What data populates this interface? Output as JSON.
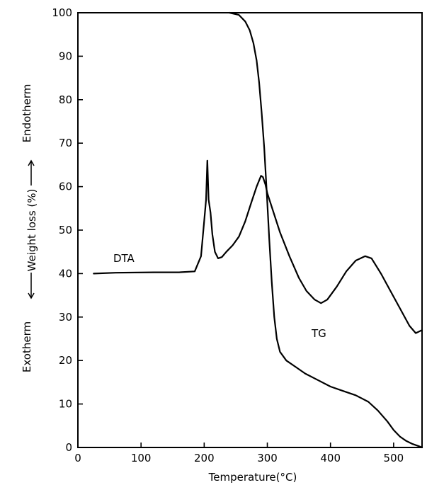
{
  "chart_data": {
    "type": "line",
    "xlabel": "Temperature(°C)",
    "ylabel_parts": {
      "exotherm": "Exotherm",
      "weight": "Weight loss (%)",
      "endotherm": "Endotherm"
    },
    "xlim": [
      0,
      545
    ],
    "ylim": [
      0,
      100
    ],
    "xticks": [
      0,
      100,
      200,
      300,
      400,
      500
    ],
    "yticks": [
      0,
      10,
      20,
      30,
      40,
      50,
      60,
      70,
      80,
      90,
      100
    ],
    "grid": false,
    "legend": "none",
    "series": [
      {
        "name": "DTA",
        "label_text": "DTA",
        "x": [
          25,
          60,
          120,
          160,
          185,
          195,
          200,
          203,
          205,
          207,
          210,
          213,
          217,
          222,
          228,
          235,
          245,
          255,
          265,
          275,
          283,
          290,
          293,
          297,
          300,
          310,
          320,
          335,
          350,
          362,
          375,
          385,
          395,
          410,
          425,
          440,
          455,
          465,
          480,
          495,
          510,
          525,
          535,
          545
        ],
        "y": [
          40,
          40.2,
          40.3,
          40.3,
          40.5,
          44,
          52,
          57,
          66,
          57,
          54,
          49,
          45,
          43.5,
          43.8,
          45,
          46.5,
          48.5,
          52,
          56.5,
          60,
          62.5,
          62.2,
          60.5,
          58.5,
          54,
          49.5,
          44,
          39,
          36,
          34,
          33.2,
          34,
          37,
          40.5,
          43,
          44,
          43.5,
          40,
          36,
          32,
          28,
          26.3,
          27
        ]
      },
      {
        "name": "TG",
        "label_text": "TG",
        "x": [
          240,
          255,
          265,
          272,
          278,
          283,
          287,
          291,
          295,
          299,
          303,
          307,
          311,
          315,
          320,
          330,
          345,
          360,
          380,
          400,
          420,
          440,
          460,
          475,
          490,
          500,
          510,
          520,
          530,
          540,
          545
        ],
        "y": [
          100,
          99.5,
          98,
          96,
          93,
          89,
          84,
          77,
          69,
          59,
          48,
          38,
          30,
          25,
          22,
          20,
          18.5,
          17,
          15.5,
          14,
          13,
          12,
          10.5,
          8.5,
          6,
          4,
          2.5,
          1.5,
          0.8,
          0.3,
          0
        ]
      }
    ]
  }
}
